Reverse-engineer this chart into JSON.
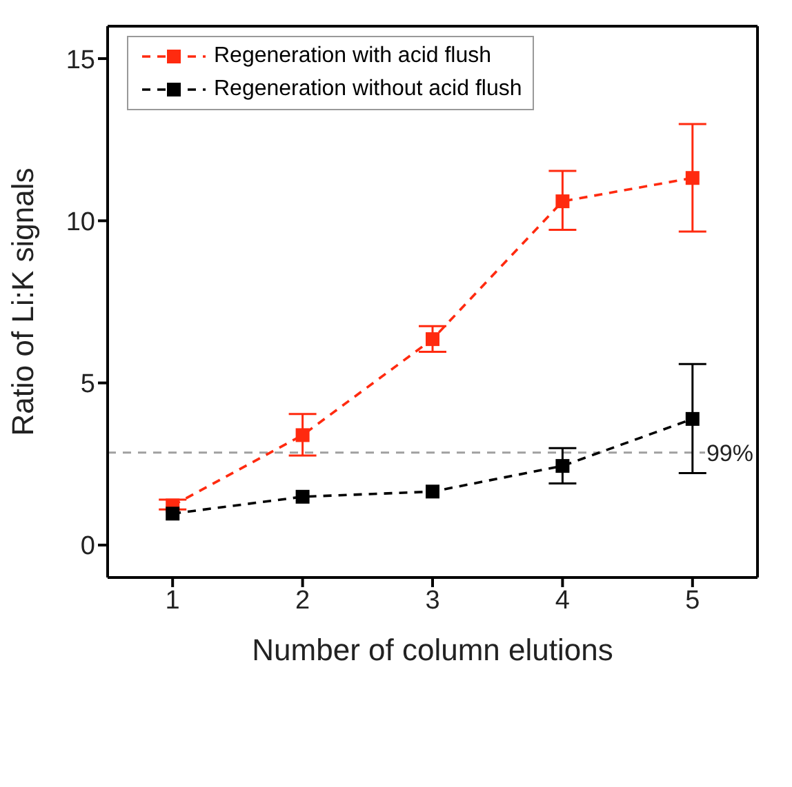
{
  "chart_data": {
    "type": "line",
    "xlabel": "Number of column elutions",
    "ylabel": "Ratio of Li:K signals",
    "x": [
      1,
      2,
      3,
      4,
      5
    ],
    "xlim": [
      0.5,
      5.5
    ],
    "xticks": [
      1,
      2,
      3,
      4,
      5
    ],
    "ylim": [
      -1,
      16
    ],
    "yticks": [
      0,
      5,
      10,
      15
    ],
    "grid": false,
    "legend": "top left",
    "marker": "square",
    "line_style": "dashed",
    "series": [
      {
        "name": "Regeneration with acid flush",
        "color": "#ff2a0f",
        "values": [
          1.22,
          3.39,
          6.35,
          10.6,
          11.32
        ],
        "errors": [
          [
            1.1,
            1.4
          ],
          [
            2.76,
            4.04
          ],
          [
            5.96,
            6.75
          ],
          [
            9.72,
            11.54
          ],
          [
            9.67,
            12.98
          ]
        ]
      },
      {
        "name": "Regeneration without acid flush",
        "color": "#000000",
        "values": [
          0.97,
          1.49,
          1.65,
          2.44,
          3.89
        ],
        "errors": [
          null,
          null,
          null,
          [
            1.9,
            2.99
          ],
          [
            2.22,
            5.58
          ]
        ]
      }
    ],
    "ref_lines": [
      {
        "axis": "y",
        "value": 2.85,
        "color": "#a0a0a0",
        "line_style": "dashed"
      }
    ],
    "annotations": [
      {
        "text": "99%",
        "x": 5.5,
        "y": 2.85
      }
    ]
  }
}
